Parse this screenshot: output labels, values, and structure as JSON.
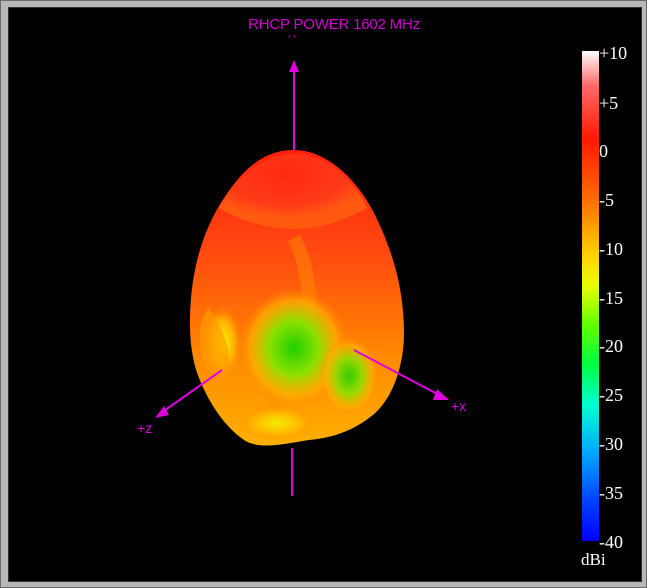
{
  "title": "RHCP POWER 1602  MHz",
  "colorbar": {
    "unit": "dBi",
    "ticks": [
      "+10",
      "+5",
      "0",
      "-5",
      "-10",
      "-15",
      "-20",
      "-25",
      "-30",
      "-35",
      "-40"
    ]
  },
  "axes": {
    "x_label": "+x",
    "z_label": "+z",
    "y_label": "' '"
  },
  "colors": {
    "axis": "#e000e0",
    "background": "#000000"
  }
}
